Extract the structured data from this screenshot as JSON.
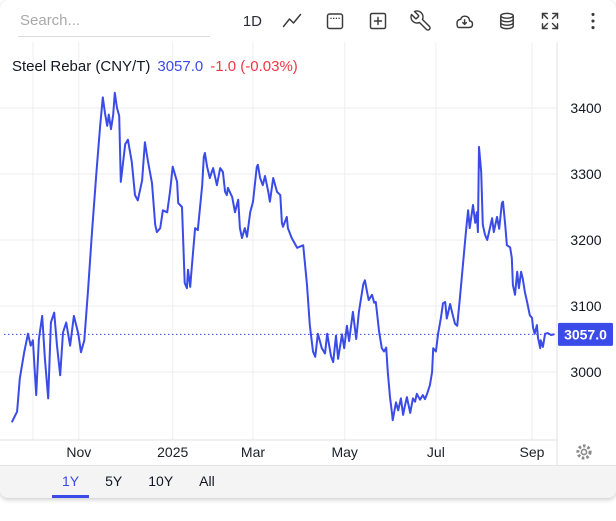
{
  "toolbar": {
    "search_placeholder": "Search...",
    "interval_label": "1D",
    "icons": [
      "trend-line",
      "calendar",
      "add-panel",
      "tools-wrench",
      "cloud-download",
      "database",
      "fullscreen",
      "overflow-menu"
    ]
  },
  "header": {
    "symbol": "Steel Rebar (CNY/T)",
    "price": "3057.0",
    "change": "-1.0 (-0.03%)"
  },
  "colors": {
    "accent_blue": "#3a4be8",
    "negative_red": "#f23645",
    "grid_v": "#efefef",
    "grid_h": "#ececec",
    "axis_border": "#e0e0e0",
    "axis_text": "#131722",
    "month_text": "#1b1f27",
    "badge_text": "#ffffff"
  },
  "range_tabs": [
    {
      "label": "1Y",
      "active": true
    },
    {
      "label": "5Y",
      "active": false
    },
    {
      "label": "10Y",
      "active": false
    },
    {
      "label": "All",
      "active": false
    }
  ],
  "chart_data": {
    "type": "line",
    "title": "Steel Rebar (CNY/T)",
    "unit": "CNY/T",
    "current_price": 3057.0,
    "current_price_label": "3057.0",
    "change": -1.0,
    "change_pct": "-0.03%",
    "x_range": [
      "Sep 2024",
      "Sep 2025"
    ],
    "ylim": [
      2897,
      3500
    ],
    "y_ticks": [
      3400,
      3300,
      3200,
      3100,
      3000
    ],
    "x_ticks": [
      {
        "t": 0.042,
        "label": ""
      },
      {
        "t": 0.126,
        "label": "Nov"
      },
      {
        "t": 0.298,
        "label": "2025"
      },
      {
        "t": 0.445,
        "label": "Mar"
      },
      {
        "t": 0.613,
        "label": "May"
      },
      {
        "t": 0.78,
        "label": "Jul"
      },
      {
        "t": 0.956,
        "label": "Sep"
      }
    ],
    "legend_position": "top-left",
    "grid": true,
    "points": [
      [
        0.004,
        2925
      ],
      [
        0.013,
        2940
      ],
      [
        0.018,
        2990
      ],
      [
        0.026,
        3030
      ],
      [
        0.033,
        3058
      ],
      [
        0.038,
        3040
      ],
      [
        0.042,
        3048
      ],
      [
        0.048,
        2965
      ],
      [
        0.053,
        3050
      ],
      [
        0.059,
        3085
      ],
      [
        0.064,
        3020
      ],
      [
        0.07,
        2960
      ],
      [
        0.075,
        3075
      ],
      [
        0.081,
        3090
      ],
      [
        0.086,
        3040
      ],
      [
        0.092,
        2995
      ],
      [
        0.097,
        3060
      ],
      [
        0.103,
        3075
      ],
      [
        0.11,
        3040
      ],
      [
        0.117,
        3085
      ],
      [
        0.125,
        3058
      ],
      [
        0.13,
        3030
      ],
      [
        0.136,
        3048
      ],
      [
        0.143,
        3125
      ],
      [
        0.15,
        3210
      ],
      [
        0.158,
        3300
      ],
      [
        0.165,
        3372
      ],
      [
        0.17,
        3416
      ],
      [
        0.174,
        3392
      ],
      [
        0.178,
        3373
      ],
      [
        0.181,
        3390
      ],
      [
        0.185,
        3368
      ],
      [
        0.189,
        3390
      ],
      [
        0.192,
        3423
      ],
      [
        0.196,
        3400
      ],
      [
        0.2,
        3388
      ],
      [
        0.203,
        3288
      ],
      [
        0.211,
        3345
      ],
      [
        0.216,
        3352
      ],
      [
        0.223,
        3318
      ],
      [
        0.229,
        3268
      ],
      [
        0.234,
        3260
      ],
      [
        0.242,
        3290
      ],
      [
        0.247,
        3348
      ],
      [
        0.253,
        3318
      ],
      [
        0.26,
        3286
      ],
      [
        0.266,
        3223
      ],
      [
        0.269,
        3212
      ],
      [
        0.275,
        3218
      ],
      [
        0.28,
        3245
      ],
      [
        0.288,
        3242
      ],
      [
        0.293,
        3273
      ],
      [
        0.298,
        3311
      ],
      [
        0.306,
        3288
      ],
      [
        0.308,
        3256
      ],
      [
        0.315,
        3250
      ],
      [
        0.32,
        3135
      ],
      [
        0.324,
        3127
      ],
      [
        0.326,
        3155
      ],
      [
        0.33,
        3129
      ],
      [
        0.333,
        3159
      ],
      [
        0.339,
        3218
      ],
      [
        0.344,
        3215
      ],
      [
        0.352,
        3283
      ],
      [
        0.355,
        3326
      ],
      [
        0.357,
        3332
      ],
      [
        0.361,
        3311
      ],
      [
        0.366,
        3294
      ],
      [
        0.372,
        3309
      ],
      [
        0.379,
        3283
      ],
      [
        0.385,
        3309
      ],
      [
        0.39,
        3303
      ],
      [
        0.394,
        3273
      ],
      [
        0.397,
        3268
      ],
      [
        0.399,
        3279
      ],
      [
        0.407,
        3265
      ],
      [
        0.412,
        3242
      ],
      [
        0.418,
        3261
      ],
      [
        0.421,
        3218
      ],
      [
        0.425,
        3203
      ],
      [
        0.43,
        3218
      ],
      [
        0.434,
        3205
      ],
      [
        0.44,
        3242
      ],
      [
        0.445,
        3258
      ],
      [
        0.452,
        3311
      ],
      [
        0.454,
        3314
      ],
      [
        0.458,
        3294
      ],
      [
        0.463,
        3283
      ],
      [
        0.467,
        3297
      ],
      [
        0.473,
        3273
      ],
      [
        0.476,
        3258
      ],
      [
        0.482,
        3294
      ],
      [
        0.489,
        3273
      ],
      [
        0.495,
        3268
      ],
      [
        0.498,
        3226
      ],
      [
        0.5,
        3220
      ],
      [
        0.507,
        3235
      ],
      [
        0.509,
        3218
      ],
      [
        0.516,
        3203
      ],
      [
        0.526,
        3188
      ],
      [
        0.531,
        3190
      ],
      [
        0.537,
        3192
      ],
      [
        0.544,
        3132
      ],
      [
        0.549,
        3071
      ],
      [
        0.555,
        3031
      ],
      [
        0.559,
        3023
      ],
      [
        0.564,
        3058
      ],
      [
        0.571,
        3036
      ],
      [
        0.577,
        3028
      ],
      [
        0.581,
        3058
      ],
      [
        0.588,
        3024
      ],
      [
        0.592,
        3015
      ],
      [
        0.597,
        3055
      ],
      [
        0.601,
        3020
      ],
      [
        0.608,
        3057
      ],
      [
        0.612,
        3036
      ],
      [
        0.617,
        3070
      ],
      [
        0.621,
        3047
      ],
      [
        0.628,
        3091
      ],
      [
        0.634,
        3050
      ],
      [
        0.639,
        3091
      ],
      [
        0.647,
        3133
      ],
      [
        0.65,
        3139
      ],
      [
        0.654,
        3121
      ],
      [
        0.657,
        3109
      ],
      [
        0.663,
        3117
      ],
      [
        0.667,
        3105
      ],
      [
        0.67,
        3106
      ],
      [
        0.676,
        3061
      ],
      [
        0.681,
        3036
      ],
      [
        0.685,
        3031
      ],
      [
        0.689,
        3037
      ],
      [
        0.692,
        3000
      ],
      [
        0.696,
        2962
      ],
      [
        0.7,
        2935
      ],
      [
        0.701,
        2927
      ],
      [
        0.707,
        2954
      ],
      [
        0.711,
        2942
      ],
      [
        0.716,
        2960
      ],
      [
        0.72,
        2935
      ],
      [
        0.723,
        2948
      ],
      [
        0.727,
        2962
      ],
      [
        0.733,
        2938
      ],
      [
        0.738,
        2960
      ],
      [
        0.742,
        2955
      ],
      [
        0.745,
        2967
      ],
      [
        0.751,
        2958
      ],
      [
        0.756,
        2965
      ],
      [
        0.76,
        2959
      ],
      [
        0.764,
        2967
      ],
      [
        0.769,
        2980
      ],
      [
        0.773,
        3000
      ],
      [
        0.775,
        3036
      ],
      [
        0.78,
        3031
      ],
      [
        0.784,
        3058
      ],
      [
        0.789,
        3081
      ],
      [
        0.793,
        3104
      ],
      [
        0.797,
        3106
      ],
      [
        0.8,
        3081
      ],
      [
        0.806,
        3103
      ],
      [
        0.811,
        3086
      ],
      [
        0.815,
        3073
      ],
      [
        0.819,
        3070
      ],
      [
        0.824,
        3112
      ],
      [
        0.83,
        3167
      ],
      [
        0.835,
        3212
      ],
      [
        0.839,
        3245
      ],
      [
        0.842,
        3218
      ],
      [
        0.848,
        3253
      ],
      [
        0.852,
        3226
      ],
      [
        0.855,
        3242
      ],
      [
        0.857,
        3212
      ],
      [
        0.859,
        3341
      ],
      [
        0.863,
        3303
      ],
      [
        0.866,
        3223
      ],
      [
        0.87,
        3208
      ],
      [
        0.874,
        3200
      ],
      [
        0.879,
        3218
      ],
      [
        0.883,
        3233
      ],
      [
        0.886,
        3212
      ],
      [
        0.892,
        3235
      ],
      [
        0.896,
        3217
      ],
      [
        0.901,
        3256
      ],
      [
        0.903,
        3258
      ],
      [
        0.907,
        3223
      ],
      [
        0.91,
        3192
      ],
      [
        0.916,
        3189
      ],
      [
        0.919,
        3173
      ],
      [
        0.921,
        3132
      ],
      [
        0.925,
        3117
      ],
      [
        0.929,
        3152
      ],
      [
        0.932,
        3127
      ],
      [
        0.936,
        3152
      ],
      [
        0.939,
        3142
      ],
      [
        0.943,
        3121
      ],
      [
        0.947,
        3106
      ],
      [
        0.952,
        3086
      ],
      [
        0.956,
        3082
      ],
      [
        0.958,
        3067
      ],
      [
        0.961,
        3058
      ],
      [
        0.965,
        3071
      ],
      [
        0.967,
        3052
      ],
      [
        0.971,
        3036
      ],
      [
        0.972,
        3048
      ],
      [
        0.976,
        3038
      ],
      [
        0.98,
        3058
      ],
      [
        0.985,
        3059
      ],
      [
        0.991,
        3056
      ],
      [
        0.996,
        3057
      ]
    ]
  }
}
